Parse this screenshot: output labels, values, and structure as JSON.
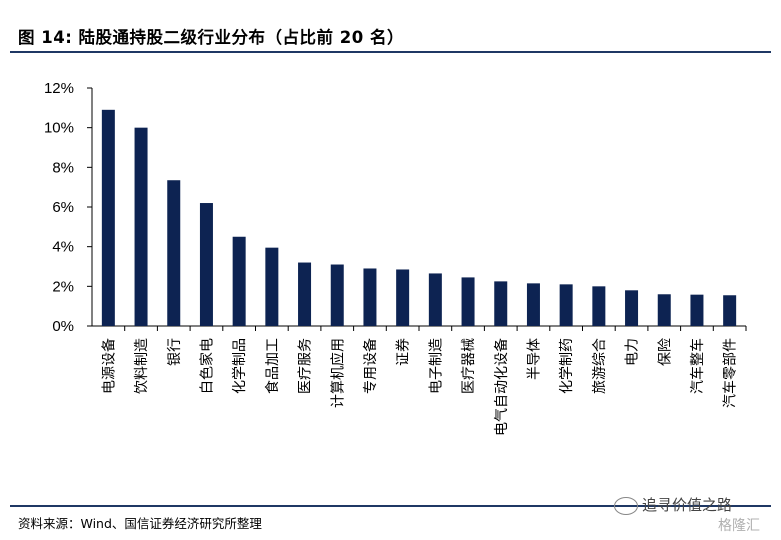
{
  "header": {
    "title": "图 14:  陆股通持股二级行业分布（占比前 20 名）"
  },
  "chart_data": {
    "type": "bar",
    "title": "",
    "xlabel": "",
    "ylabel": "",
    "ylim": [
      0,
      12
    ],
    "yticks": [
      "0%",
      "2%",
      "4%",
      "6%",
      "8%",
      "10%",
      "12%"
    ],
    "bar_color": "#0d2352",
    "grid": false,
    "categories": [
      "电源设备",
      "饮料制造",
      "银行",
      "白色家电",
      "化学制品",
      "食品加工",
      "医疗服务",
      "计算机应用",
      "专用设备",
      "证券",
      "电子制造",
      "医疗器械",
      "电气自动化设备",
      "半导体",
      "化学制药",
      "旅游综合",
      "电力",
      "保险",
      "汽车整车",
      "汽车零部件"
    ],
    "values": [
      10.9,
      10.0,
      7.35,
      6.2,
      4.5,
      3.95,
      3.2,
      3.1,
      2.9,
      2.85,
      2.65,
      2.45,
      2.25,
      2.15,
      2.1,
      2.0,
      1.8,
      1.6,
      1.58,
      1.55
    ]
  },
  "footer": {
    "source": "资料来源：Wind、国信证券经济研究所整理",
    "watermark": "追寻价值之路",
    "brand": "格隆汇"
  }
}
